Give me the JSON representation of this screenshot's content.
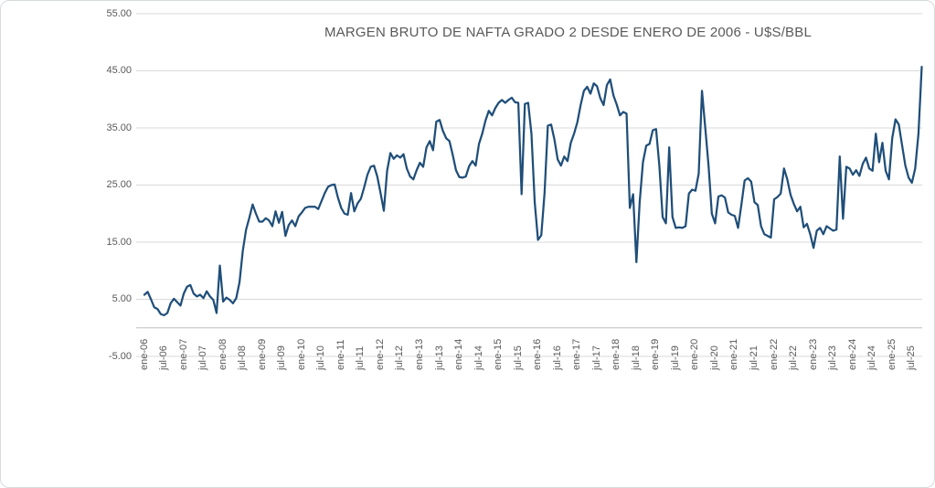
{
  "colors": {
    "line": "#1f4e79",
    "gridline": "#d9d9d9",
    "axis_line": "#bfbfbf",
    "label_text": "#595959",
    "title_text": "#595959",
    "frame_border": "#d6dade",
    "background": "#ffffff"
  },
  "chart_data": {
    "type": "line",
    "title": "MARGEN BRUTO DE NAFTA GRADO 2 DESDE ENERO DE 2006 - U$S/BBL",
    "xlabel": "",
    "ylabel": "",
    "ylim": [
      -5,
      55
    ],
    "grid": "horizontal",
    "legend": "none",
    "x_frequency": "monthly",
    "x_start": "ene-06",
    "x_end": "oct-25",
    "point_count": 238,
    "y_ticks": [
      55,
      45,
      35,
      25,
      15,
      5,
      -5
    ],
    "y_tick_labels": [
      "55.00",
      "45.00",
      "35.00",
      "25.00",
      "15.00",
      "5.00",
      "-5.00"
    ],
    "x_tick_every_months": 6,
    "x_tick_labels": [
      "ene-06",
      "jul-06",
      "ene-07",
      "jul-07",
      "ene-08",
      "jul-08",
      "ene-09",
      "jul-09",
      "ene-10",
      "jul-10",
      "ene-11",
      "jul-11",
      "ene-12",
      "jul-12",
      "ene-13",
      "jul-13",
      "ene-14",
      "jul-14",
      "ene-15",
      "jul-15",
      "ene-16",
      "jul-16",
      "ene-17",
      "jul-17",
      "ene-18",
      "jul-18",
      "ene-19",
      "jul-19",
      "ene-20",
      "jul-20",
      "ene-21",
      "jul-21",
      "ene-22",
      "jul-22",
      "ene-23",
      "jul-23",
      "ene-24",
      "jul-24",
      "ene-25",
      "jul-25"
    ],
    "values": [
      5.8,
      6.3,
      5.0,
      3.6,
      3.3,
      2.4,
      2.2,
      2.6,
      4.3,
      5.1,
      4.5,
      3.9,
      6.0,
      7.2,
      7.5,
      6.0,
      5.5,
      5.8,
      5.2,
      6.4,
      5.5,
      4.9,
      2.6,
      10.9,
      4.6,
      5.3,
      4.9,
      4.3,
      5.2,
      8.0,
      13.5,
      17.2,
      19.3,
      21.6,
      20.0,
      18.6,
      18.6,
      19.2,
      18.8,
      17.8,
      20.4,
      18.4,
      20.3,
      16.1,
      18.0,
      18.8,
      17.8,
      19.5,
      20.2,
      21.0,
      21.2,
      21.2,
      21.2,
      20.8,
      22.2,
      23.6,
      24.7,
      25.0,
      25.1,
      22.8,
      21.0,
      20.0,
      19.8,
      23.6,
      20.4,
      21.8,
      22.6,
      24.6,
      26.8,
      28.2,
      28.4,
      26.5,
      23.6,
      20.5,
      27.5,
      30.6,
      29.6,
      30.2,
      29.8,
      30.4,
      27.9,
      26.5,
      26.0,
      27.6,
      28.9,
      28.2,
      31.6,
      32.7,
      31.1,
      36.1,
      36.4,
      34.5,
      33.2,
      32.7,
      30.3,
      27.6,
      26.4,
      26.3,
      26.5,
      28.3,
      29.2,
      28.4,
      32.2,
      34.0,
      36.3,
      38.0,
      37.2,
      38.5,
      39.4,
      39.9,
      39.4,
      39.9,
      40.3,
      39.5,
      39.4,
      23.4,
      39.2,
      39.4,
      34.0,
      22.0,
      15.4,
      16.2,
      23.6,
      35.4,
      35.6,
      33.0,
      29.5,
      28.4,
      30.0,
      29.2,
      32.4,
      34.0,
      36.0,
      39.0,
      41.5,
      42.2,
      41.0,
      42.8,
      42.3,
      40.2,
      39.0,
      42.5,
      43.5,
      40.7,
      39.1,
      37.2,
      37.8,
      37.5,
      21.0,
      23.4,
      11.5,
      22.0,
      29.0,
      31.9,
      32.2,
      34.6,
      34.8,
      28.4,
      19.4,
      18.3,
      31.6,
      19.4,
      17.5,
      17.6,
      17.5,
      17.8,
      23.5,
      24.2,
      24.0,
      27.0,
      41.5,
      35.0,
      28.4,
      20.0,
      18.3,
      23.0,
      23.2,
      22.8,
      20.2,
      19.8,
      19.6,
      17.5,
      21.5,
      25.8,
      26.2,
      25.6,
      22.0,
      21.5,
      17.8,
      16.4,
      16.1,
      15.8,
      22.5,
      22.9,
      23.5,
      27.9,
      26.0,
      23.3,
      21.7,
      20.4,
      21.2,
      17.6,
      18.2,
      16.4,
      14.0,
      17.0,
      17.5,
      16.4,
      17.8,
      17.4,
      17.0,
      17.2,
      30.0,
      19.1,
      28.2,
      27.9,
      26.8,
      27.6,
      26.6,
      28.7,
      29.8,
      27.9,
      27.5,
      34.0,
      29.0,
      32.4,
      27.5,
      26.0,
      33.2,
      36.5,
      35.6,
      32.0,
      28.4,
      26.3,
      25.4,
      27.9,
      34.0,
      45.7
    ]
  }
}
